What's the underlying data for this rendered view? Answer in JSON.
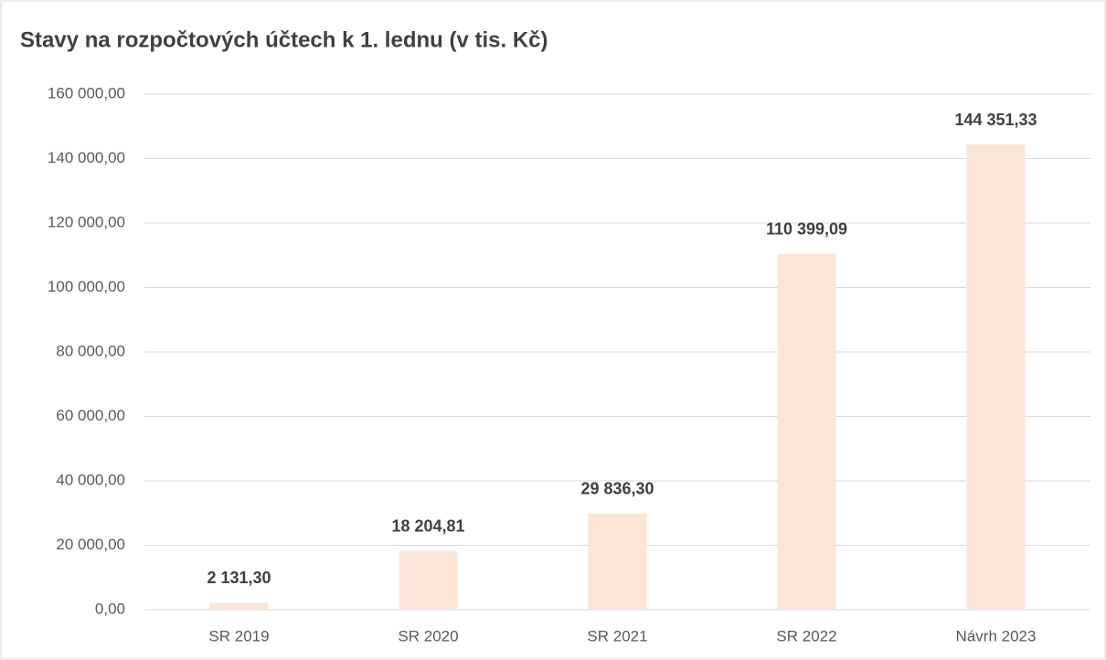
{
  "chart_data": {
    "type": "bar",
    "title": "Stavy na rozpočtových účtech k 1. lednu (v tis. Kč)",
    "categories": [
      "SR 2019",
      "SR 2020",
      "SR 2021",
      "SR 2022",
      "Návrh 2023"
    ],
    "values": [
      2131.3,
      18204.81,
      29836.3,
      110399.09,
      144351.33
    ],
    "value_labels": [
      "2 131,30",
      "18 204,81",
      "29 836,30",
      "110 399,09",
      "144 351,33"
    ],
    "color": "#fbe5d6",
    "ylim": [
      0,
      160000
    ],
    "yticks": [
      {
        "value": 0,
        "label": "0,00"
      },
      {
        "value": 20000,
        "label": "20 000,00"
      },
      {
        "value": 40000,
        "label": "40 000,00"
      },
      {
        "value": 60000,
        "label": "60 000,00"
      },
      {
        "value": 80000,
        "label": "80 000,00"
      },
      {
        "value": 100000,
        "label": "100 000,00"
      },
      {
        "value": 120000,
        "label": "120 000,00"
      },
      {
        "value": 140000,
        "label": "140 000,00"
      },
      {
        "value": 160000,
        "label": "160 000,00"
      }
    ],
    "grid": true
  }
}
